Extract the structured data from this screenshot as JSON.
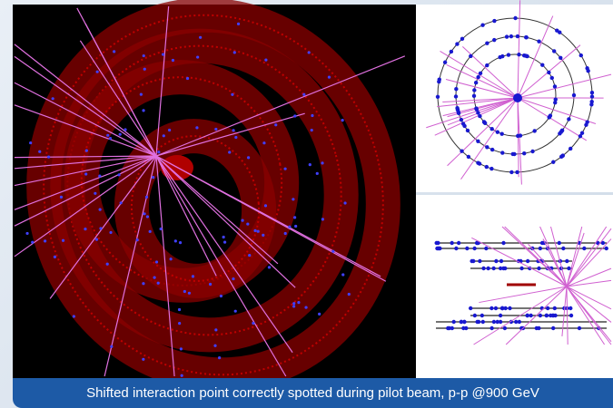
{
  "caption": "Shifted interaction point correctly spotted during pilot beam, p-p @900 GeV"
}
